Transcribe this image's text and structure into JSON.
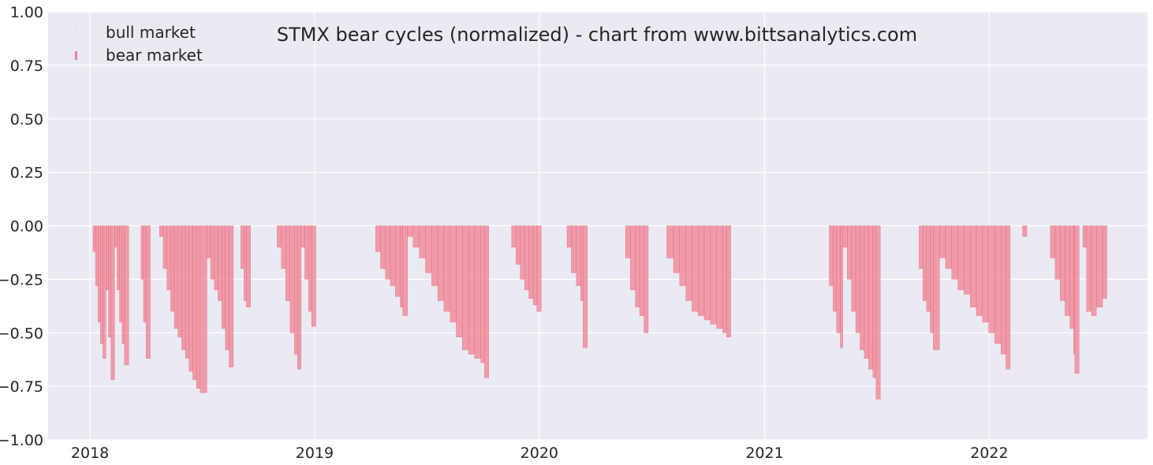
{
  "chart_data": {
    "type": "bar",
    "title": "STMX bear cycles (normalized)  - chart from www.bittsanalytics.com",
    "xlabel": "",
    "ylabel": "",
    "x_type": "date",
    "xlim": [
      "2017-10-25",
      "2022-09-15"
    ],
    "ylim": [
      -1.0,
      1.0
    ],
    "y_ticks": [
      "1.00",
      "0.75",
      "0.50",
      "0.25",
      "0.00",
      "−0.25",
      "−0.50",
      "−0.75",
      "−1.00"
    ],
    "x_ticks": [
      "2018",
      "2019",
      "2020",
      "2021",
      "2022"
    ],
    "grid": true,
    "legend_position": "top-left",
    "series": [
      {
        "name": "bull market",
        "color": "#c8c8d8",
        "points": [
          [
            "2018-01-05",
            0.0
          ]
        ]
      },
      {
        "name": "bear market",
        "color": "#f08090",
        "points": [
          [
            "2018-01-06",
            -0.12
          ],
          [
            "2018-01-10",
            -0.28
          ],
          [
            "2018-01-14",
            -0.45
          ],
          [
            "2018-01-18",
            -0.55
          ],
          [
            "2018-01-22",
            -0.62
          ],
          [
            "2018-01-27",
            -0.3
          ],
          [
            "2018-01-31",
            -0.52
          ],
          [
            "2018-02-04",
            -0.72
          ],
          [
            "2018-02-10",
            -0.1
          ],
          [
            "2018-02-14",
            -0.3
          ],
          [
            "2018-02-18",
            -0.45
          ],
          [
            "2018-02-22",
            -0.55
          ],
          [
            "2018-02-26",
            -0.65
          ],
          [
            "2018-03-25",
            -0.25
          ],
          [
            "2018-03-29",
            -0.45
          ],
          [
            "2018-04-02",
            -0.62
          ],
          [
            "2018-04-24",
            -0.05
          ],
          [
            "2018-04-30",
            -0.2
          ],
          [
            "2018-05-06",
            -0.3
          ],
          [
            "2018-05-12",
            -0.4
          ],
          [
            "2018-05-18",
            -0.48
          ],
          [
            "2018-05-24",
            -0.52
          ],
          [
            "2018-05-30",
            -0.58
          ],
          [
            "2018-06-05",
            -0.62
          ],
          [
            "2018-06-11",
            -0.68
          ],
          [
            "2018-06-17",
            -0.72
          ],
          [
            "2018-06-23",
            -0.76
          ],
          [
            "2018-06-29",
            -0.78
          ],
          [
            "2018-07-10",
            -0.15
          ],
          [
            "2018-07-16",
            -0.25
          ],
          [
            "2018-07-22",
            -0.3
          ],
          [
            "2018-07-28",
            -0.35
          ],
          [
            "2018-08-03",
            -0.48
          ],
          [
            "2018-08-09",
            -0.58
          ],
          [
            "2018-08-15",
            -0.66
          ],
          [
            "2018-09-03",
            -0.2
          ],
          [
            "2018-09-08",
            -0.35
          ],
          [
            "2018-09-12",
            -0.38
          ],
          [
            "2018-11-01",
            -0.1
          ],
          [
            "2018-11-08",
            -0.2
          ],
          [
            "2018-11-15",
            -0.35
          ],
          [
            "2018-11-22",
            -0.5
          ],
          [
            "2018-11-29",
            -0.6
          ],
          [
            "2018-12-04",
            -0.67
          ],
          [
            "2018-12-10",
            -0.1
          ],
          [
            "2018-12-16",
            -0.25
          ],
          [
            "2018-12-22",
            -0.4
          ],
          [
            "2018-12-27",
            -0.47
          ],
          [
            "2019-04-10",
            -0.12
          ],
          [
            "2019-04-18",
            -0.2
          ],
          [
            "2019-04-26",
            -0.25
          ],
          [
            "2019-05-04",
            -0.28
          ],
          [
            "2019-05-12",
            -0.33
          ],
          [
            "2019-05-20",
            -0.38
          ],
          [
            "2019-05-24",
            -0.42
          ],
          [
            "2019-06-01",
            -0.05
          ],
          [
            "2019-06-10",
            -0.1
          ],
          [
            "2019-06-20",
            -0.15
          ],
          [
            "2019-06-30",
            -0.22
          ],
          [
            "2019-07-10",
            -0.28
          ],
          [
            "2019-07-20",
            -0.35
          ],
          [
            "2019-07-30",
            -0.4
          ],
          [
            "2019-08-09",
            -0.45
          ],
          [
            "2019-08-19",
            -0.52
          ],
          [
            "2019-08-29",
            -0.58
          ],
          [
            "2019-09-08",
            -0.6
          ],
          [
            "2019-09-18",
            -0.62
          ],
          [
            "2019-09-28",
            -0.64
          ],
          [
            "2019-10-04",
            -0.71
          ],
          [
            "2019-11-17",
            -0.1
          ],
          [
            "2019-11-24",
            -0.18
          ],
          [
            "2019-12-01",
            -0.25
          ],
          [
            "2019-12-08",
            -0.3
          ],
          [
            "2019-12-15",
            -0.34
          ],
          [
            "2019-12-22",
            -0.37
          ],
          [
            "2019-12-28",
            -0.4
          ],
          [
            "2020-02-15",
            -0.1
          ],
          [
            "2020-02-22",
            -0.22
          ],
          [
            "2020-03-01",
            -0.28
          ],
          [
            "2020-03-08",
            -0.35
          ],
          [
            "2020-03-12",
            -0.57
          ],
          [
            "2020-05-20",
            -0.15
          ],
          [
            "2020-05-28",
            -0.3
          ],
          [
            "2020-06-05",
            -0.38
          ],
          [
            "2020-06-12",
            -0.42
          ],
          [
            "2020-06-19",
            -0.5
          ],
          [
            "2020-07-26",
            -0.15
          ],
          [
            "2020-08-06",
            -0.22
          ],
          [
            "2020-08-16",
            -0.28
          ],
          [
            "2020-08-26",
            -0.35
          ],
          [
            "2020-09-05",
            -0.4
          ],
          [
            "2020-09-15",
            -0.42
          ],
          [
            "2020-09-25",
            -0.44
          ],
          [
            "2020-10-05",
            -0.46
          ],
          [
            "2020-10-15",
            -0.48
          ],
          [
            "2020-10-25",
            -0.5
          ],
          [
            "2020-10-31",
            -0.52
          ],
          [
            "2021-04-16",
            -0.28
          ],
          [
            "2021-04-22",
            -0.4
          ],
          [
            "2021-04-28",
            -0.5
          ],
          [
            "2021-05-04",
            -0.57
          ],
          [
            "2021-05-08",
            -0.1
          ],
          [
            "2021-05-15",
            -0.25
          ],
          [
            "2021-05-22",
            -0.4
          ],
          [
            "2021-05-29",
            -0.5
          ],
          [
            "2021-06-05",
            -0.58
          ],
          [
            "2021-06-12",
            -0.62
          ],
          [
            "2021-06-19",
            -0.67
          ],
          [
            "2021-06-26",
            -0.71
          ],
          [
            "2021-07-01",
            -0.81
          ],
          [
            "2021-09-09",
            -0.2
          ],
          [
            "2021-09-15",
            -0.35
          ],
          [
            "2021-09-21",
            -0.4
          ],
          [
            "2021-09-27",
            -0.5
          ],
          [
            "2021-10-02",
            -0.58
          ],
          [
            "2021-10-12",
            -0.15
          ],
          [
            "2021-10-22",
            -0.2
          ],
          [
            "2021-11-01",
            -0.25
          ],
          [
            "2021-11-11",
            -0.3
          ],
          [
            "2021-11-21",
            -0.32
          ],
          [
            "2021-12-01",
            -0.38
          ],
          [
            "2021-12-11",
            -0.42
          ],
          [
            "2021-12-21",
            -0.45
          ],
          [
            "2021-12-31",
            -0.5
          ],
          [
            "2022-01-10",
            -0.55
          ],
          [
            "2022-01-20",
            -0.6
          ],
          [
            "2022-01-28",
            -0.67
          ],
          [
            "2022-02-24",
            -0.05
          ],
          [
            "2022-04-10",
            -0.15
          ],
          [
            "2022-04-18",
            -0.25
          ],
          [
            "2022-04-26",
            -0.35
          ],
          [
            "2022-05-04",
            -0.42
          ],
          [
            "2022-05-12",
            -0.48
          ],
          [
            "2022-05-18",
            -0.6
          ],
          [
            "2022-05-20",
            -0.69
          ],
          [
            "2022-06-02",
            -0.1
          ],
          [
            "2022-06-08",
            -0.4
          ],
          [
            "2022-06-16",
            -0.42
          ],
          [
            "2022-06-24",
            -0.38
          ],
          [
            "2022-07-04",
            -0.34
          ]
        ]
      }
    ]
  }
}
